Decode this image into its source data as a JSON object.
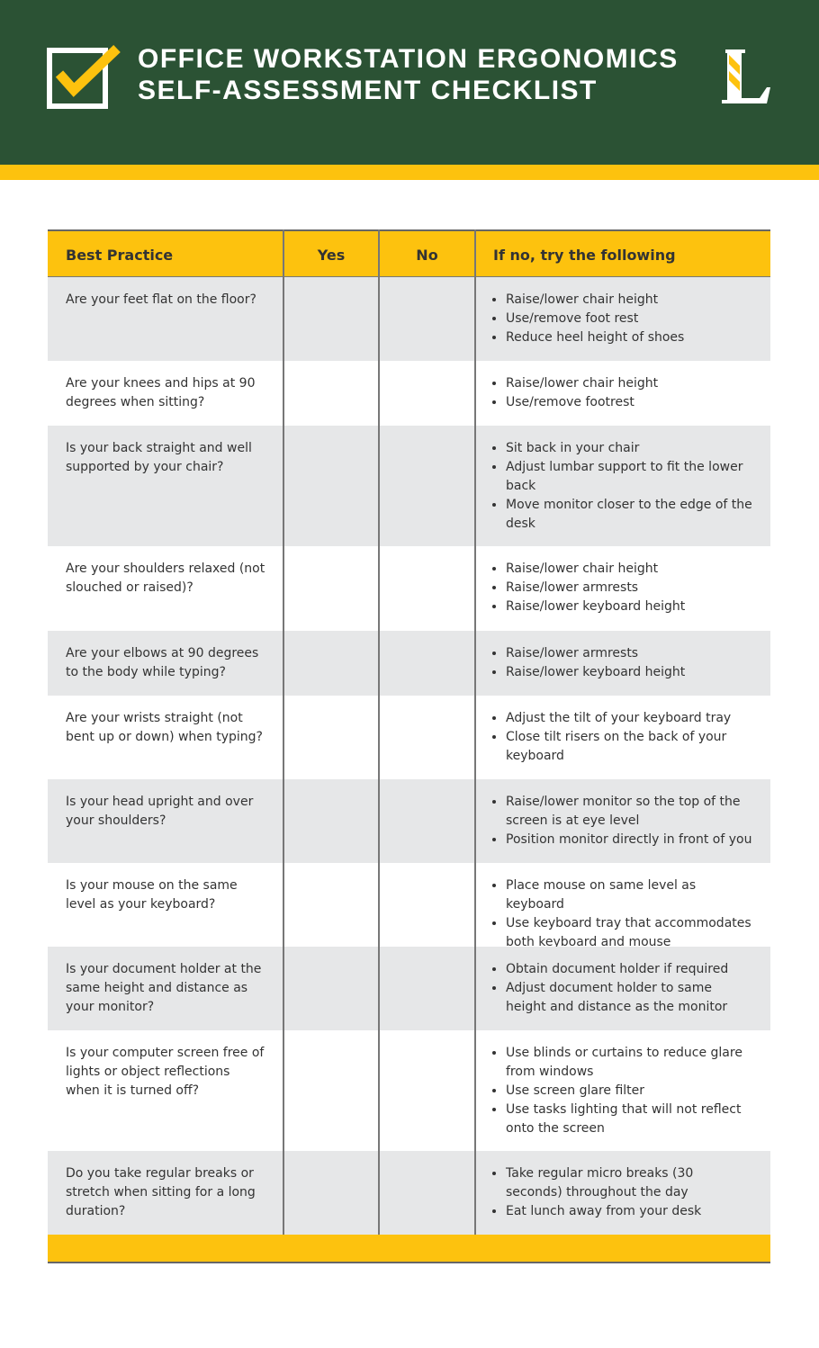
{
  "header": {
    "title_lines": [
      "OFFICE WORKSTATION ERGONOMICS",
      "SELF-ASSESSMENT CHECKLIST"
    ]
  },
  "table": {
    "columns": [
      "Best Practice",
      "Yes",
      "No",
      "If no, try the following"
    ],
    "rows": [
      {
        "question": "Are your feet flat on the floor?",
        "suggestions": [
          "Raise/lower chair height",
          "Use/remove foot rest",
          "Reduce heel height of shoes"
        ]
      },
      {
        "question": "Are your knees and hips at 90 degrees when sitting?",
        "suggestions": [
          "Raise/lower chair height",
          "Use/remove footrest"
        ]
      },
      {
        "question": "Is your back straight and well supported by your chair?",
        "suggestions": [
          "Sit back in your chair",
          "Adjust lumbar support to fit the lower back",
          "Move monitor closer to the edge of the desk"
        ]
      },
      {
        "question": "Are your shoulders relaxed (not slouched or raised)?",
        "suggestions": [
          "Raise/lower chair height",
          "Raise/lower armrests",
          "Raise/lower keyboard height"
        ]
      },
      {
        "question": "Are your elbows at 90 degrees to the body while typing?",
        "suggestions": [
          "Raise/lower armrests",
          "Raise/lower keyboard height"
        ]
      },
      {
        "question": "Are your wrists straight (not bent up or down) when typing?",
        "suggestions": [
          "Adjust the tilt of your keyboard tray",
          "Close tilt risers on the back of your keyboard"
        ]
      },
      {
        "question": "Is your head upright and over your shoulders?",
        "suggestions": [
          "Raise/lower monitor so the top of the screen is at eye level",
          "Position monitor directly in front of you"
        ]
      },
      {
        "question": "Is your mouse on the same level as your keyboard?",
        "suggestions": [
          "Place mouse on same level as keyboard",
          "Use keyboard tray that accommodates both keyboard and mouse"
        ]
      },
      {
        "question": "Is your document holder at the same height and distance as your monitor?",
        "suggestions": [
          "Obtain document holder if required",
          "Adjust document holder to same height and distance as the monitor"
        ]
      },
      {
        "question": "Is your computer screen free of lights or object reflections when it is turned off?",
        "suggestions": [
          "Use blinds or curtains to reduce glare from windows",
          "Use screen glare filter",
          "Use tasks lighting that will not reflect onto the screen"
        ]
      },
      {
        "question": "Do you take regular breaks or stretch when sitting for a long duration?",
        "suggestions": [
          "Take regular micro breaks (30 seconds) throughout the day",
          "Eat lunch away from your desk"
        ]
      }
    ]
  }
}
